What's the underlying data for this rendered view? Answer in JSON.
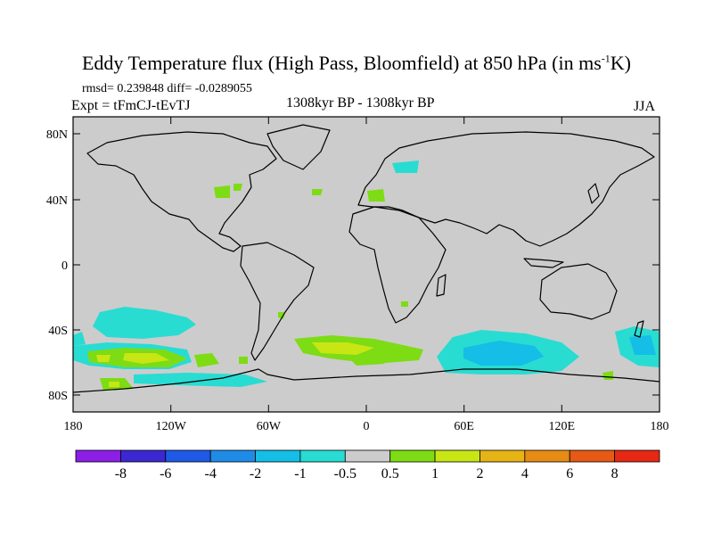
{
  "title": {
    "main": "Eddy Temperature flux (High Pass, Bloomfield) at 850 hPa (in ms",
    "sup": "-1",
    "end": "K)"
  },
  "stats": "rmsd= 0.239848 diff= -0.0289055",
  "experiment": "Expt = tFmCJ-tEvTJ",
  "period": "1308kyr BP - 1308kyr BP",
  "season": "JJA",
  "axes": {
    "lat_labels": [
      "80N",
      "40N",
      "0",
      "40S",
      "80S"
    ],
    "lon_labels": [
      "180",
      "120W",
      "60W",
      "0",
      "60E",
      "120E",
      "180"
    ]
  },
  "colorbar": {
    "labels": [
      "-8",
      "-6",
      "-4",
      "-2",
      "-1",
      "-0.5",
      "0.5",
      "1",
      "2",
      "4",
      "6",
      "8"
    ],
    "colors": [
      "#8c1ee6",
      "#3c28d2",
      "#1e5ae6",
      "#1e8ce6",
      "#14bee6",
      "#28dcd2",
      "#cccccc",
      "#7ddc14",
      "#c8e614",
      "#e6b414",
      "#e68c14",
      "#e65a14",
      "#e62814"
    ]
  },
  "colors": {
    "background": "#cccccc",
    "coast": "#000000"
  }
}
